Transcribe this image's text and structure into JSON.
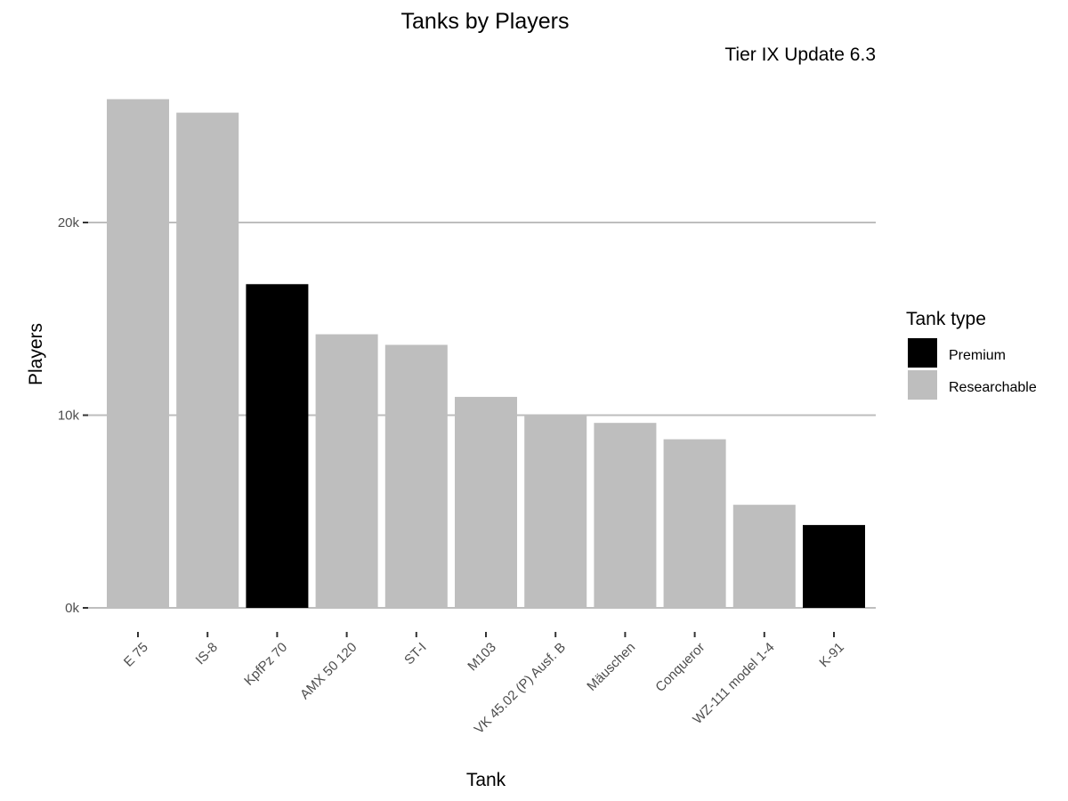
{
  "chart_data": {
    "type": "bar",
    "title": "Tanks by Players",
    "subtitle": "Tier IX Update 6.3",
    "xlabel": "Tank",
    "ylabel": "Players",
    "ylim": [
      0,
      27000
    ],
    "yticks": [
      0,
      10000,
      20000
    ],
    "ytick_labels": [
      "0k",
      "10k",
      "20k"
    ],
    "grid": "horizontal major lines",
    "legend": {
      "title": "Tank type",
      "position": "right",
      "entries": [
        {
          "label": "Premium",
          "color": "#000000"
        },
        {
          "label": "Researchable",
          "color": "#bebebe"
        }
      ]
    },
    "categories": [
      "E 75",
      "IS-8",
      "KpfPz 70",
      "AMX 50 120",
      "ST-I",
      "M103",
      "VK 45.02 (P) Ausf. B",
      "Mäuschen",
      "Conqueror",
      "WZ-111 model 1-4",
      "K-91"
    ],
    "values": [
      26400,
      25700,
      16800,
      14200,
      13650,
      10950,
      10000,
      9600,
      8750,
      5350,
      4300
    ],
    "types": [
      "Researchable",
      "Researchable",
      "Premium",
      "Researchable",
      "Researchable",
      "Researchable",
      "Researchable",
      "Researchable",
      "Researchable",
      "Researchable",
      "Premium"
    ]
  }
}
